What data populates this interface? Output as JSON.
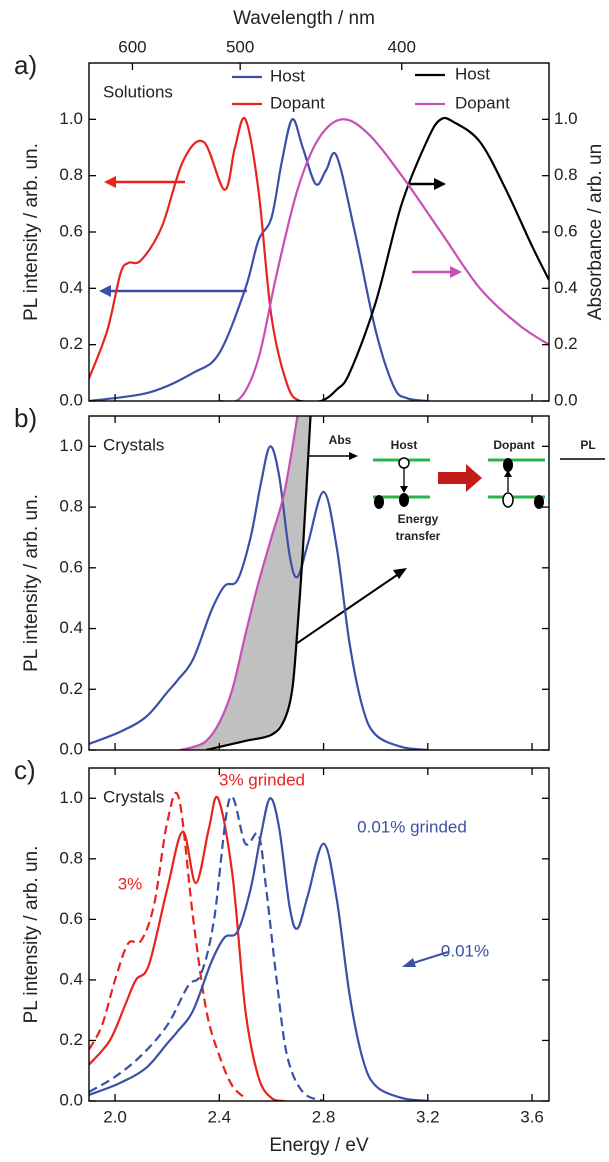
{
  "chart_data": [
    {
      "type": "line",
      "panel_label": "a)",
      "annotation": "Solutions",
      "xlim": [
        1.9,
        3.665
      ],
      "xticks": [
        {
          "value": 2,
          "label": "2.0"
        },
        2.4,
        2.8,
        3.2,
        3.6
      ],
      "xtick_labels": false,
      "x2label": "Wavelength / nm",
      "x2ticks": [
        600,
        500,
        400
      ],
      "ylabel": "PL intensity / arb. un.",
      "ylim": [
        0,
        1.2
      ],
      "yticks": [
        {
          "value": 0,
          "label": "0.0"
        },
        0.2,
        0.4,
        0.6,
        0.8,
        {
          "value": 1,
          "label": "1.0"
        }
      ],
      "y2label": "Absorbance / arb. un",
      "y2lim": [
        0,
        1.2
      ],
      "y2ticks": [
        {
          "value": 0,
          "label": "0.0"
        },
        0.2,
        0.4,
        0.6,
        0.8,
        {
          "value": 1,
          "label": "1.0"
        }
      ],
      "series": [
        {
          "name": "Host",
          "color": "#3a50a6",
          "x": [
            1.9,
            2.13,
            2.3,
            2.4,
            2.5,
            2.55,
            2.6,
            2.64,
            2.68,
            2.72,
            2.77,
            2.81,
            2.85,
            2.92,
            3.0,
            3.07,
            3.12,
            3.2
          ],
          "values": [
            0.0,
            0.03,
            0.1,
            0.17,
            0.4,
            0.57,
            0.65,
            0.85,
            1.0,
            0.9,
            0.77,
            0.82,
            0.87,
            0.6,
            0.25,
            0.05,
            0.01,
            0.0
          ]
        },
        {
          "name": "Dopant",
          "color": "#e8231e",
          "x": [
            1.9,
            1.97,
            2.02,
            2.05,
            2.1,
            2.18,
            2.26,
            2.34,
            2.42,
            2.46,
            2.5,
            2.55,
            2.6,
            2.66,
            2.71,
            2.8
          ],
          "values": [
            0.08,
            0.25,
            0.45,
            0.49,
            0.5,
            0.62,
            0.85,
            0.92,
            0.75,
            0.9,
            1.0,
            0.75,
            0.3,
            0.06,
            0.0,
            0.0
          ]
        },
        {
          "name": "Host",
          "color": "#000000",
          "axis": "y2",
          "x": [
            2.7,
            2.79,
            2.85,
            2.9,
            3.0,
            3.1,
            3.2,
            3.25,
            3.3,
            3.4,
            3.5,
            3.6,
            3.665
          ],
          "values": [
            0.0,
            0.0,
            0.04,
            0.1,
            0.35,
            0.7,
            0.93,
            1.0,
            0.99,
            0.92,
            0.75,
            0.55,
            0.43
          ]
        },
        {
          "name": "Dopant",
          "color": "#c650b4",
          "axis": "y2",
          "x": [
            2.4,
            2.48,
            2.55,
            2.62,
            2.7,
            2.78,
            2.87,
            2.97,
            3.1,
            3.25,
            3.4,
            3.55,
            3.665
          ],
          "values": [
            0.0,
            0.01,
            0.15,
            0.45,
            0.75,
            0.93,
            1.0,
            0.95,
            0.8,
            0.6,
            0.4,
            0.27,
            0.2
          ]
        }
      ]
    },
    {
      "type": "line",
      "panel_label": "b)",
      "annotation": "Crystals",
      "xlim": [
        1.9,
        3.665
      ],
      "xticks": [
        {
          "value": 2,
          "label": "2.0"
        },
        2.4,
        2.8,
        3.2,
        3.6
      ],
      "xtick_labels": false,
      "ylabel": "PL intensity / arb. un.",
      "ylim": [
        0,
        1.1
      ],
      "yticks": [
        {
          "value": 0,
          "label": "0.0"
        },
        0.2,
        0.4,
        0.6,
        0.8,
        {
          "value": 1,
          "label": "1.0"
        }
      ],
      "overlap_fill": "#c0c0c0",
      "diagram": {
        "abs": "Abs",
        "host": "Host",
        "dopant": "Dopant",
        "pl": "PL",
        "energy_transfer": [
          "Energy",
          "transfer"
        ]
      },
      "series": [
        {
          "color": "#3a50a6",
          "x": [
            1.9,
            2.02,
            2.12,
            2.2,
            2.24,
            2.3,
            2.37,
            2.42,
            2.47,
            2.52,
            2.56,
            2.595,
            2.63,
            2.67,
            2.7,
            2.74,
            2.8,
            2.85,
            2.9,
            2.95,
            3.0,
            3.1,
            3.2
          ],
          "values": [
            0.02,
            0.06,
            0.11,
            0.19,
            0.23,
            0.3,
            0.46,
            0.54,
            0.56,
            0.7,
            0.88,
            1.0,
            0.9,
            0.64,
            0.57,
            0.68,
            0.85,
            0.67,
            0.35,
            0.14,
            0.05,
            0.01,
            0.0
          ]
        },
        {
          "color": "#c650b4",
          "x": [
            2.25,
            2.3,
            2.35,
            2.4,
            2.45,
            2.5,
            2.55,
            2.6,
            2.65,
            2.7
          ],
          "values": [
            0.0,
            0.01,
            0.03,
            0.09,
            0.2,
            0.38,
            0.55,
            0.7,
            0.85,
            1.1
          ]
        },
        {
          "color": "#000000",
          "x": [
            2.35,
            2.4,
            2.5,
            2.6,
            2.65,
            2.68,
            2.7,
            2.72,
            2.75
          ],
          "values": [
            0.0,
            0.01,
            0.03,
            0.05,
            0.1,
            0.2,
            0.4,
            0.65,
            1.1
          ]
        }
      ]
    },
    {
      "type": "line",
      "panel_label": "c)",
      "annotation": "Crystals",
      "xlim": [
        1.9,
        3.665
      ],
      "xticks": [
        {
          "value": 2,
          "label": "2.0"
        },
        2.4,
        2.8,
        3.2,
        3.6
      ],
      "xtick_labels": true,
      "xlabel": "Energy / eV",
      "ylabel": "PL intensity / arb. un.",
      "ylim": [
        0,
        1.1
      ],
      "yticks": [
        {
          "value": 0,
          "label": "0.0"
        },
        0.2,
        0.4,
        0.6,
        0.8,
        {
          "value": 1,
          "label": "1.0"
        }
      ],
      "series": [
        {
          "name": "3% grinded",
          "color": "#e8231e",
          "x": [
            1.9,
            1.98,
            2.04,
            2.08,
            2.13,
            2.2,
            2.26,
            2.31,
            2.36,
            2.395,
            2.45,
            2.5,
            2.55,
            2.6,
            2.65
          ],
          "values": [
            0.12,
            0.2,
            0.32,
            0.4,
            0.45,
            0.7,
            0.89,
            0.72,
            0.9,
            1.0,
            0.75,
            0.3,
            0.08,
            0.01,
            0.0
          ]
        },
        {
          "name": "3%",
          "color": "#e8231e",
          "dash": true,
          "x": [
            1.9,
            1.95,
            2.0,
            2.05,
            2.1,
            2.15,
            2.2,
            2.245,
            2.3,
            2.35,
            2.4,
            2.45,
            2.5
          ],
          "values": [
            0.17,
            0.25,
            0.4,
            0.52,
            0.53,
            0.65,
            0.92,
            1.0,
            0.6,
            0.3,
            0.15,
            0.05,
            0.01
          ]
        },
        {
          "name": "0.01% grinded",
          "color": "#3a50a6",
          "x": [
            1.9,
            2.02,
            2.12,
            2.2,
            2.24,
            2.3,
            2.37,
            2.42,
            2.47,
            2.52,
            2.56,
            2.595,
            2.63,
            2.67,
            2.7,
            2.74,
            2.8,
            2.85,
            2.9,
            2.95,
            3.0,
            3.1,
            3.2
          ],
          "values": [
            0.02,
            0.06,
            0.11,
            0.19,
            0.23,
            0.3,
            0.46,
            0.54,
            0.56,
            0.7,
            0.88,
            1.0,
            0.9,
            0.64,
            0.57,
            0.68,
            0.85,
            0.67,
            0.35,
            0.14,
            0.05,
            0.01,
            0.0
          ]
        },
        {
          "name": "0.01%",
          "color": "#3a50a6",
          "dash": true,
          "x": [
            1.9,
            2.0,
            2.1,
            2.2,
            2.28,
            2.33,
            2.38,
            2.44,
            2.5,
            2.55,
            2.58,
            2.62,
            2.66,
            2.72,
            2.8
          ],
          "values": [
            0.03,
            0.08,
            0.15,
            0.25,
            0.38,
            0.42,
            0.6,
            1.0,
            0.85,
            0.88,
            0.7,
            0.4,
            0.15,
            0.03,
            0.0
          ]
        }
      ]
    }
  ]
}
